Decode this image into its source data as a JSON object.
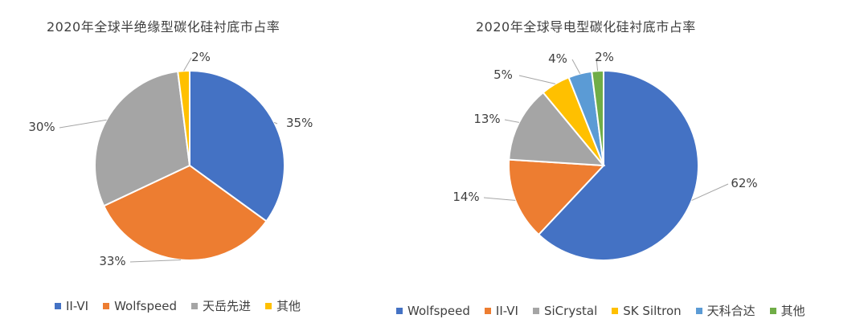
{
  "chart_data": [
    {
      "type": "pie",
      "title": "2020年全球半绝缘型碳化硅衬底市占率",
      "categories": [
        "II-VI",
        "Wolfspeed",
        "天岳先进",
        "其他"
      ],
      "values": [
        35,
        33,
        30,
        2
      ],
      "value_labels": [
        "35%",
        "33%",
        "30%",
        "2%"
      ],
      "colors": [
        "#4472C4",
        "#ED7D31",
        "#A5A5A5",
        "#FFC000"
      ],
      "legend_position": "bottom"
    },
    {
      "type": "pie",
      "title": "2020年全球导电型碳化硅衬底市占率",
      "categories": [
        "Wolfspeed",
        "II-VI",
        "SiCrystal",
        "SK Siltron",
        "天科合达",
        "其他"
      ],
      "values": [
        62,
        14,
        13,
        5,
        4,
        2
      ],
      "value_labels": [
        "62%",
        "14%",
        "13%",
        "5%",
        "4%",
        "2%"
      ],
      "colors": [
        "#4472C4",
        "#ED7D31",
        "#A5A5A5",
        "#FFC000",
        "#5B9BD5",
        "#70AD47"
      ],
      "legend_position": "bottom"
    }
  ]
}
